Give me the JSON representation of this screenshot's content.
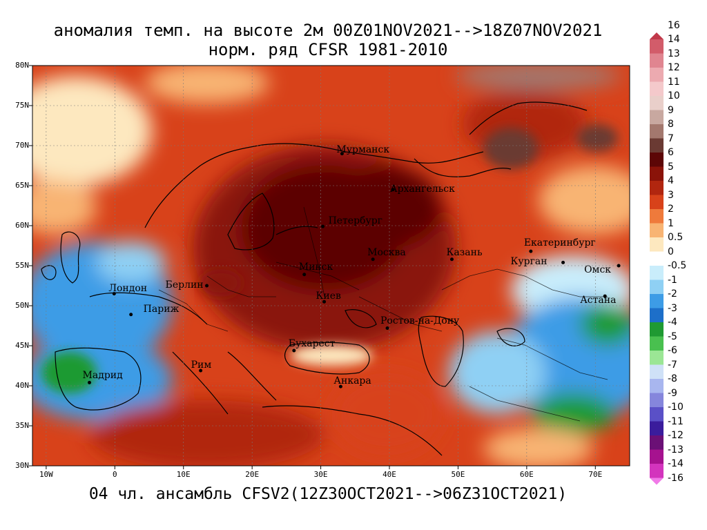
{
  "title_line1": "аномалия темп. на высоте 2м 00Z01NOV2021-->18Z07NOV2021",
  "title_line2": "норм. ряд CFSR 1981-2010",
  "footer": "04 чл. ансамбль CFSV2(12Z30OCT2021-->06Z31OCT2021)",
  "map": {
    "lon_range": [
      -12,
      75
    ],
    "lat_range": [
      30,
      80
    ],
    "lat_labels": [
      "80N",
      "75N",
      "70N",
      "65N",
      "60N",
      "55N",
      "50N",
      "45N",
      "40N",
      "35N",
      "30N"
    ],
    "lat_values": [
      80,
      75,
      70,
      65,
      60,
      55,
      50,
      45,
      40,
      35,
      30
    ],
    "lon_labels": [
      "10W",
      "0",
      "10E",
      "20E",
      "30E",
      "40E",
      "50E",
      "60E",
      "70E"
    ],
    "lon_values": [
      -10,
      0,
      10,
      20,
      30,
      40,
      50,
      60,
      70
    ],
    "cities": [
      {
        "name": "Мурманск",
        "lon": 33.1,
        "lat": 69.0
      },
      {
        "name": "Архангельск",
        "lon": 40.5,
        "lat": 64.5
      },
      {
        "name": "Петербург",
        "lon": 30.3,
        "lat": 59.9
      },
      {
        "name": "Москва",
        "lon": 37.6,
        "lat": 55.8
      },
      {
        "name": "Казань",
        "lon": 49.1,
        "lat": 55.8
      },
      {
        "name": "Екатеринбург",
        "lon": 60.6,
        "lat": 56.8
      },
      {
        "name": "Курган",
        "lon": 65.3,
        "lat": 55.4
      },
      {
        "name": "Омск",
        "lon": 73.4,
        "lat": 55.0
      },
      {
        "name": "Астана",
        "lon": 71.4,
        "lat": 51.2
      },
      {
        "name": "Минск",
        "lon": 27.6,
        "lat": 53.9
      },
      {
        "name": "Киев",
        "lon": 30.5,
        "lat": 50.5
      },
      {
        "name": "Берлин",
        "lon": 13.4,
        "lat": 52.5
      },
      {
        "name": "Лондон",
        "lon": -0.1,
        "lat": 51.5
      },
      {
        "name": "Париж",
        "lon": 2.35,
        "lat": 48.9
      },
      {
        "name": "Ростов-на-Дону",
        "lon": 39.7,
        "lat": 47.2
      },
      {
        "name": "Бухарест",
        "lon": 26.1,
        "lat": 44.4
      },
      {
        "name": "Рим",
        "lon": 12.5,
        "lat": 41.9
      },
      {
        "name": "Мадрид",
        "lon": -3.7,
        "lat": 40.4
      },
      {
        "name": "Анкара",
        "lon": 32.9,
        "lat": 39.9
      }
    ]
  },
  "colorbar": {
    "labels": [
      "16",
      "14",
      "13",
      "12",
      "11",
      "10",
      "9",
      "8",
      "7",
      "6",
      "5",
      "4",
      "3",
      "2",
      "1",
      "0.5",
      "0",
      "-0.5",
      "-1",
      "-2",
      "-3",
      "-4",
      "-5",
      "-6",
      "-7",
      "-8",
      "-9",
      "-10",
      "-11",
      "-12",
      "-13",
      "-14",
      "-16"
    ],
    "colors": [
      "#c1394a",
      "#d25c6a",
      "#e08590",
      "#ecaab0",
      "#f4c9cb",
      "#e9cfca",
      "#c8a8a0",
      "#a3786e",
      "#6a3a33",
      "#5c0606",
      "#8a1309",
      "#b1260f",
      "#d8421a",
      "#ef7a3b",
      "#f8b473",
      "#fde8bf",
      "#ffffff",
      "#c9edfb",
      "#8fd0f4",
      "#3d9ce6",
      "#1d6fc9",
      "#1f9a32",
      "#49c04f",
      "#9be695",
      "#cfe1f7",
      "#a8b6ef",
      "#8586dc",
      "#5a50c7",
      "#3a1c9c",
      "#6b1076",
      "#a6128f",
      "#d334bd",
      "#f17ae8"
    ]
  }
}
